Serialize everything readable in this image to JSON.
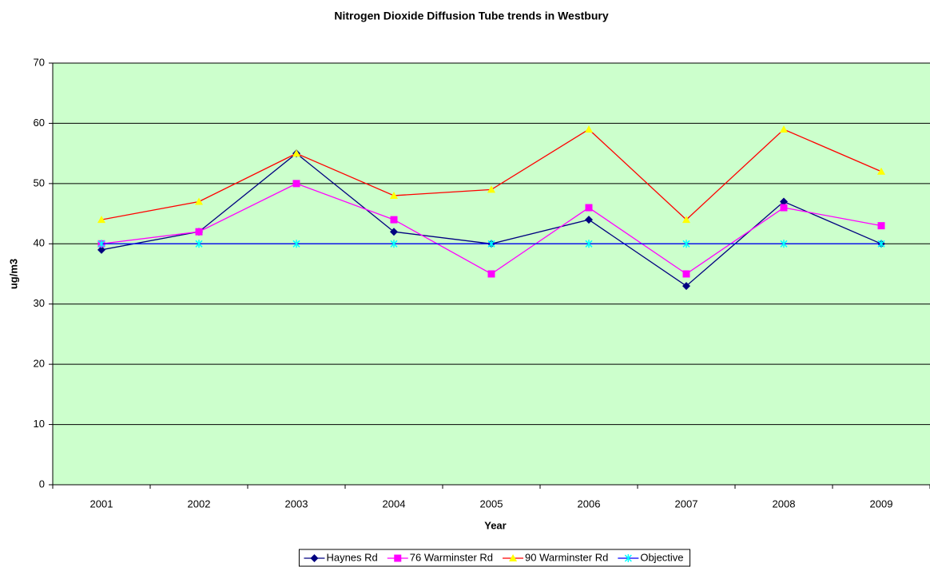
{
  "chart_data": {
    "type": "line",
    "title": "Nitrogen Dioxide Diffusion Tube trends in Westbury",
    "x_label": "Year",
    "y_label": "ug/m3",
    "categories": [
      "2001",
      "2002",
      "2003",
      "2004",
      "2005",
      "2006",
      "2007",
      "2008",
      "2009"
    ],
    "series": [
      {
        "name": "Haynes Rd",
        "color": "#000080",
        "marker_color": "#000080",
        "marker": "diamond",
        "values": [
          39,
          42,
          55,
          42,
          40,
          44,
          33,
          47,
          40
        ]
      },
      {
        "name": "76 Warminster Rd",
        "color": "#ff00ff",
        "marker_color": "#ff00ff",
        "marker": "square",
        "values": [
          40,
          42,
          50,
          44,
          35,
          46,
          35,
          46,
          43
        ]
      },
      {
        "name": "90 Warminster Rd",
        "color": "#ff0000",
        "marker_color": "#ffff00",
        "marker": "triangle",
        "values": [
          44,
          47,
          55,
          48,
          49,
          59,
          44,
          59,
          52
        ]
      },
      {
        "name": "Objective",
        "color": "#0000ff",
        "marker_color": "#00ffff",
        "marker": "x",
        "values": [
          40,
          40,
          40,
          40,
          40,
          40,
          40,
          40,
          40
        ]
      }
    ],
    "ylim": [
      0,
      70
    ],
    "yticks": [
      0,
      10,
      20,
      30,
      40,
      50,
      60,
      70
    ],
    "grid": true,
    "plot_background": "#ccffcc",
    "legend": "bottom"
  }
}
